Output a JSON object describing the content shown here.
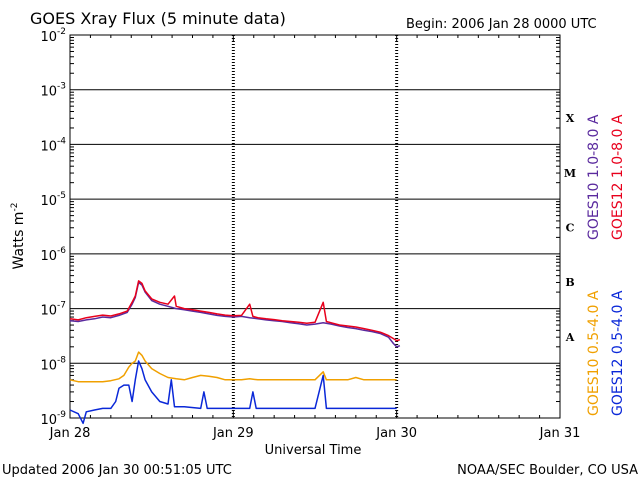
{
  "chart_data": {
    "type": "line",
    "title": "GOES Xray Flux (5 minute data)",
    "begin_label": "Begin:  2006 Jan 28 0000 UTC",
    "xlabel": "Universal Time",
    "ylabel": "Watts m",
    "ylabel_sup": "-2",
    "y_scale": "log",
    "ylim": [
      1e-09,
      0.01
    ],
    "x_range_days": [
      0,
      3
    ],
    "x_ticks": [
      {
        "day": 0,
        "label": "Jan 28"
      },
      {
        "day": 1,
        "label": "Jan 29"
      },
      {
        "day": 2,
        "label": "Jan 30"
      },
      {
        "day": 3,
        "label": "Jan 31"
      }
    ],
    "y_ticks": [
      {
        "exp": -2,
        "base": "10",
        "sup": "-2"
      },
      {
        "exp": -3,
        "base": "10",
        "sup": "-3"
      },
      {
        "exp": -4,
        "base": "10",
        "sup": "-4"
      },
      {
        "exp": -5,
        "base": "10",
        "sup": "-5"
      },
      {
        "exp": -6,
        "base": "10",
        "sup": "-6"
      },
      {
        "exp": -7,
        "base": "10",
        "sup": "-7"
      },
      {
        "exp": -8,
        "base": "10",
        "sup": "-8"
      },
      {
        "exp": -9,
        "base": "10",
        "sup": "-9"
      }
    ],
    "flare_classes": [
      {
        "label": "X",
        "exp": -4
      },
      {
        "label": "M",
        "exp": -5
      },
      {
        "label": "C",
        "exp": -6
      },
      {
        "label": "B",
        "exp": -7
      },
      {
        "label": "A",
        "exp": -8
      }
    ],
    "grid_horizontal": true,
    "series": [
      {
        "name": "GOES10 1.0-8.0 A",
        "color": "#5a2a9e",
        "points": [
          [
            0,
            6e-08
          ],
          [
            0.05,
            5.8e-08
          ],
          [
            0.1,
            6.2e-08
          ],
          [
            0.15,
            6.5e-08
          ],
          [
            0.2,
            7e-08
          ],
          [
            0.25,
            6.8e-08
          ],
          [
            0.3,
            7.5e-08
          ],
          [
            0.35,
            8.5e-08
          ],
          [
            0.38,
            1.2e-07
          ],
          [
            0.4,
            1.6e-07
          ],
          [
            0.42,
            3e-07
          ],
          [
            0.44,
            2.7e-07
          ],
          [
            0.46,
            2e-07
          ],
          [
            0.5,
            1.4e-07
          ],
          [
            0.55,
            1.2e-07
          ],
          [
            0.6,
            1.1e-07
          ],
          [
            0.65,
            1e-07
          ],
          [
            0.7,
            9.5e-08
          ],
          [
            0.75,
            9e-08
          ],
          [
            0.8,
            8.5e-08
          ],
          [
            0.85,
            8e-08
          ],
          [
            0.9,
            7.5e-08
          ],
          [
            0.95,
            7.2e-08
          ],
          [
            1.0,
            7e-08
          ],
          [
            1.05,
            7.2e-08
          ],
          [
            1.1,
            6.8e-08
          ],
          [
            1.15,
            6.5e-08
          ],
          [
            1.2,
            6.2e-08
          ],
          [
            1.25,
            6e-08
          ],
          [
            1.3,
            5.8e-08
          ],
          [
            1.35,
            5.5e-08
          ],
          [
            1.4,
            5.3e-08
          ],
          [
            1.45,
            5e-08
          ],
          [
            1.5,
            5.2e-08
          ],
          [
            1.55,
            5.5e-08
          ],
          [
            1.6,
            5.2e-08
          ],
          [
            1.65,
            4.8e-08
          ],
          [
            1.7,
            4.5e-08
          ],
          [
            1.75,
            4.3e-08
          ],
          [
            1.8,
            4e-08
          ],
          [
            1.85,
            3.8e-08
          ],
          [
            1.9,
            3.5e-08
          ],
          [
            1.95,
            3e-08
          ],
          [
            1.98,
            2.3e-08
          ],
          [
            2.0,
            2e-08
          ],
          [
            2.02,
            2.1e-08
          ]
        ]
      },
      {
        "name": "GOES12 1.0-8.0 A",
        "color": "#e8001c",
        "points": [
          [
            0,
            6.5e-08
          ],
          [
            0.05,
            6.2e-08
          ],
          [
            0.1,
            6.8e-08
          ],
          [
            0.15,
            7.2e-08
          ],
          [
            0.2,
            7.6e-08
          ],
          [
            0.25,
            7.3e-08
          ],
          [
            0.3,
            8e-08
          ],
          [
            0.35,
            9e-08
          ],
          [
            0.38,
            1.3e-07
          ],
          [
            0.4,
            1.7e-07
          ],
          [
            0.42,
            3.2e-07
          ],
          [
            0.44,
            2.9e-07
          ],
          [
            0.46,
            2.1e-07
          ],
          [
            0.5,
            1.5e-07
          ],
          [
            0.55,
            1.3e-07
          ],
          [
            0.6,
            1.2e-07
          ],
          [
            0.64,
            1.7e-07
          ],
          [
            0.65,
            1.1e-07
          ],
          [
            0.7,
            1e-07
          ],
          [
            0.75,
            9.5e-08
          ],
          [
            0.8,
            9e-08
          ],
          [
            0.85,
            8.5e-08
          ],
          [
            0.9,
            8e-08
          ],
          [
            0.95,
            7.6e-08
          ],
          [
            1.0,
            7.4e-08
          ],
          [
            1.05,
            7.5e-08
          ],
          [
            1.1,
            1.2e-07
          ],
          [
            1.12,
            7.2e-08
          ],
          [
            1.15,
            6.8e-08
          ],
          [
            1.2,
            6.5e-08
          ],
          [
            1.25,
            6.3e-08
          ],
          [
            1.3,
            6e-08
          ],
          [
            1.35,
            5.8e-08
          ],
          [
            1.4,
            5.6e-08
          ],
          [
            1.45,
            5.4e-08
          ],
          [
            1.5,
            5.6e-08
          ],
          [
            1.55,
            1.3e-07
          ],
          [
            1.57,
            5.8e-08
          ],
          [
            1.6,
            5.5e-08
          ],
          [
            1.65,
            5e-08
          ],
          [
            1.7,
            4.8e-08
          ],
          [
            1.75,
            4.6e-08
          ],
          [
            1.8,
            4.3e-08
          ],
          [
            1.85,
            4e-08
          ],
          [
            1.9,
            3.7e-08
          ],
          [
            1.95,
            3.2e-08
          ],
          [
            2.0,
            2.6e-08
          ],
          [
            2.02,
            2.7e-08
          ]
        ]
      },
      {
        "name": "GOES10 0.5-4.0 A",
        "color": "#f0a000",
        "points": [
          [
            0,
            5e-09
          ],
          [
            0.05,
            4.6e-09
          ],
          [
            0.1,
            4.6e-09
          ],
          [
            0.15,
            4.6e-09
          ],
          [
            0.2,
            4.6e-09
          ],
          [
            0.25,
            4.8e-09
          ],
          [
            0.3,
            5.2e-09
          ],
          [
            0.33,
            6e-09
          ],
          [
            0.36,
            8.5e-09
          ],
          [
            0.38,
            1e-08
          ],
          [
            0.4,
            1.1e-08
          ],
          [
            0.42,
            1.6e-08
          ],
          [
            0.44,
            1.4e-08
          ],
          [
            0.46,
            1.1e-08
          ],
          [
            0.5,
            8e-09
          ],
          [
            0.55,
            6.5e-09
          ],
          [
            0.6,
            5.5e-09
          ],
          [
            0.65,
            5.2e-09
          ],
          [
            0.7,
            5e-09
          ],
          [
            0.75,
            5.5e-09
          ],
          [
            0.8,
            6e-09
          ],
          [
            0.85,
            5.8e-09
          ],
          [
            0.9,
            5.5e-09
          ],
          [
            0.95,
            5e-09
          ],
          [
            1.0,
            5e-09
          ],
          [
            1.05,
            5e-09
          ],
          [
            1.1,
            5.2e-09
          ],
          [
            1.15,
            5e-09
          ],
          [
            1.2,
            5e-09
          ],
          [
            1.3,
            5e-09
          ],
          [
            1.4,
            5e-09
          ],
          [
            1.5,
            5e-09
          ],
          [
            1.55,
            7e-09
          ],
          [
            1.57,
            5e-09
          ],
          [
            1.6,
            5e-09
          ],
          [
            1.7,
            5e-09
          ],
          [
            1.75,
            5.5e-09
          ],
          [
            1.8,
            5e-09
          ],
          [
            1.9,
            5e-09
          ],
          [
            2.0,
            5e-09
          ]
        ]
      },
      {
        "name": "GOES12 0.5-4.0 A",
        "color": "#0a28d8",
        "points": [
          [
            0,
            1.4e-09
          ],
          [
            0.05,
            1.2e-09
          ],
          [
            0.08,
            8e-10
          ],
          [
            0.1,
            1.3e-09
          ],
          [
            0.15,
            1.4e-09
          ],
          [
            0.2,
            1.5e-09
          ],
          [
            0.25,
            1.5e-09
          ],
          [
            0.28,
            2e-09
          ],
          [
            0.3,
            3.5e-09
          ],
          [
            0.33,
            4e-09
          ],
          [
            0.36,
            4e-09
          ],
          [
            0.38,
            2e-09
          ],
          [
            0.4,
            5e-09
          ],
          [
            0.42,
            1.1e-08
          ],
          [
            0.44,
            8e-09
          ],
          [
            0.46,
            5e-09
          ],
          [
            0.5,
            3e-09
          ],
          [
            0.55,
            2e-09
          ],
          [
            0.6,
            1.8e-09
          ],
          [
            0.62,
            5e-09
          ],
          [
            0.64,
            1.6e-09
          ],
          [
            0.7,
            1.6e-09
          ],
          [
            0.8,
            1.5e-09
          ],
          [
            0.82,
            3e-09
          ],
          [
            0.84,
            1.5e-09
          ],
          [
            0.9,
            1.5e-09
          ],
          [
            1.0,
            1.5e-09
          ],
          [
            1.1,
            1.5e-09
          ],
          [
            1.12,
            3e-09
          ],
          [
            1.14,
            1.5e-09
          ],
          [
            1.2,
            1.5e-09
          ],
          [
            1.3,
            1.5e-09
          ],
          [
            1.4,
            1.5e-09
          ],
          [
            1.5,
            1.5e-09
          ],
          [
            1.55,
            6e-09
          ],
          [
            1.57,
            1.5e-09
          ],
          [
            1.6,
            1.5e-09
          ],
          [
            1.7,
            1.5e-09
          ],
          [
            1.8,
            1.5e-09
          ],
          [
            1.9,
            1.5e-09
          ],
          [
            2.0,
            1.5e-09
          ]
        ]
      }
    ]
  },
  "footer": {
    "updated": "Updated 2006 Jan 30 00:51:05 UTC",
    "source": "NOAA/SEC Boulder, CO USA"
  }
}
